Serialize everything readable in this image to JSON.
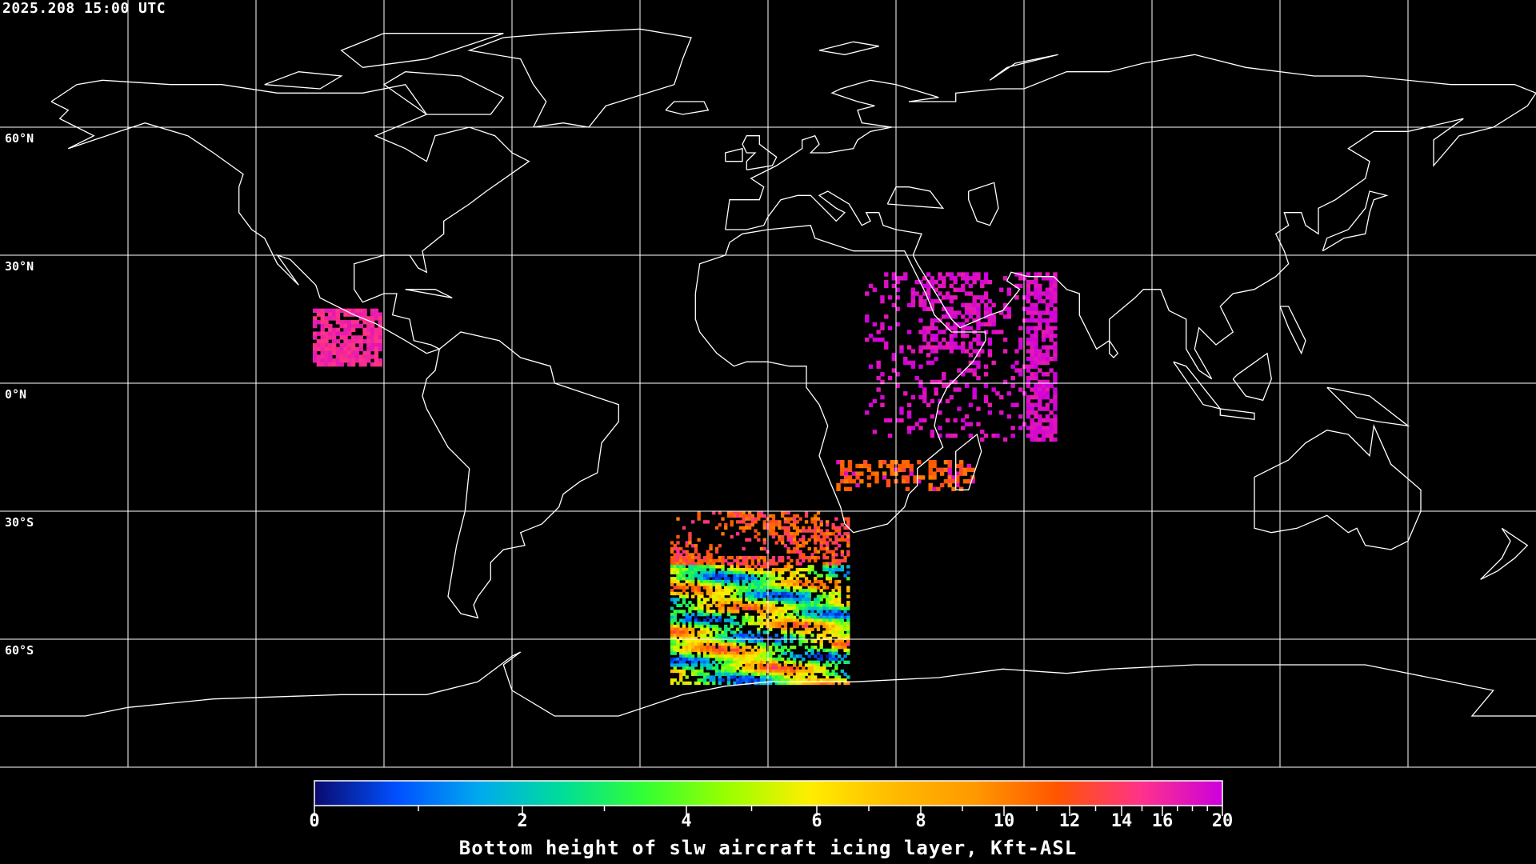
{
  "timestamp": "2025.208 15:00 UTC",
  "latitude_labels": [
    "60°N",
    "30°N",
    "0°N",
    "30°S",
    "60°S"
  ],
  "projection": "equirectangular, global",
  "colorbar": {
    "title": "Bottom height of slw aircraft icing layer, Kft-ASL",
    "min": 0,
    "max": 20,
    "tick_labels": [
      "0",
      "2",
      "4",
      "6",
      "8",
      "10",
      "12",
      "14",
      "16",
      "20"
    ],
    "stops": [
      "#0a0a6e",
      "#0050ff",
      "#00aaee",
      "#00dd99",
      "#33ff33",
      "#99ff00",
      "#ffee00",
      "#ffbb00",
      "#ff9900",
      "#ff5500",
      "#ff3388",
      "#cc00dd"
    ]
  },
  "colors": {
    "background": "#000000",
    "coastline": "#ffffff",
    "grid": "#ffffff"
  }
}
